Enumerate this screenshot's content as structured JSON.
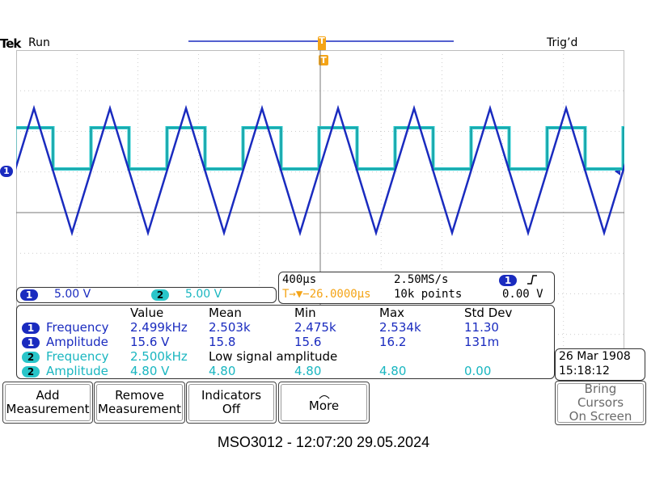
{
  "status": {
    "brand": "Tek",
    "run_state": "Run",
    "trigger_state": "Trig’d",
    "trigger_marker": "T",
    "trigger_level_marker": "T",
    "ch1_marker": "1"
  },
  "scale": {
    "ch1_label": "1",
    "ch1_value": "5.00 V",
    "ch2_label": "2",
    "ch2_value": "5.00 V"
  },
  "timebase": {
    "time_div": "400µs",
    "sample_rate": "2.50MS/s",
    "trigger_position": "T→▼−26.0000µs",
    "record_length": "10k points",
    "trigger_channel": "1",
    "trigger_slope_icon": "rising-edge",
    "trigger_level": "0.00 V"
  },
  "measurements": {
    "headers": [
      "Value",
      "Mean",
      "Min",
      "Max",
      "Std Dev"
    ],
    "rows": [
      {
        "channel": "1",
        "name": "Frequency",
        "value": "2.499kHz",
        "mean": "2.503k",
        "min": "2.475k",
        "max": "2.534k",
        "std": "11.30",
        "color": "#1a2bbf"
      },
      {
        "channel": "1",
        "name": "Amplitude",
        "value": "15.6 V",
        "mean": "15.8",
        "min": "15.6",
        "max": "16.2",
        "std": "131m",
        "color": "#1a2bbf"
      },
      {
        "channel": "2",
        "name": "Frequency",
        "value": "2.500kHz",
        "mean": "Low signal amplitude",
        "min": "",
        "max": "",
        "std": "",
        "color": "#19b6c0"
      },
      {
        "channel": "2",
        "name": "Amplitude",
        "value": "4.80 V",
        "mean": "4.80",
        "min": "4.80",
        "max": "4.80",
        "std": "0.00",
        "color": "#19b6c0"
      }
    ]
  },
  "datetime": {
    "date": "26 Mar  1908",
    "time": "15:18:12"
  },
  "buttons": {
    "add_measurement": [
      "Add",
      "Measurement"
    ],
    "remove_measurement": [
      "Remove",
      "Measurement"
    ],
    "indicators": [
      "Indicators",
      "Off"
    ],
    "more": "More",
    "bring_cursors": [
      "Bring",
      "Cursors",
      "On Screen"
    ]
  },
  "footer": "MSO3012 - 12:07:20   29.05.2024",
  "colors": {
    "ch1": "#1a2bbf",
    "ch2": "#29c5c9",
    "trigger": "#f4a417",
    "grid": "#bdbdbd"
  }
}
